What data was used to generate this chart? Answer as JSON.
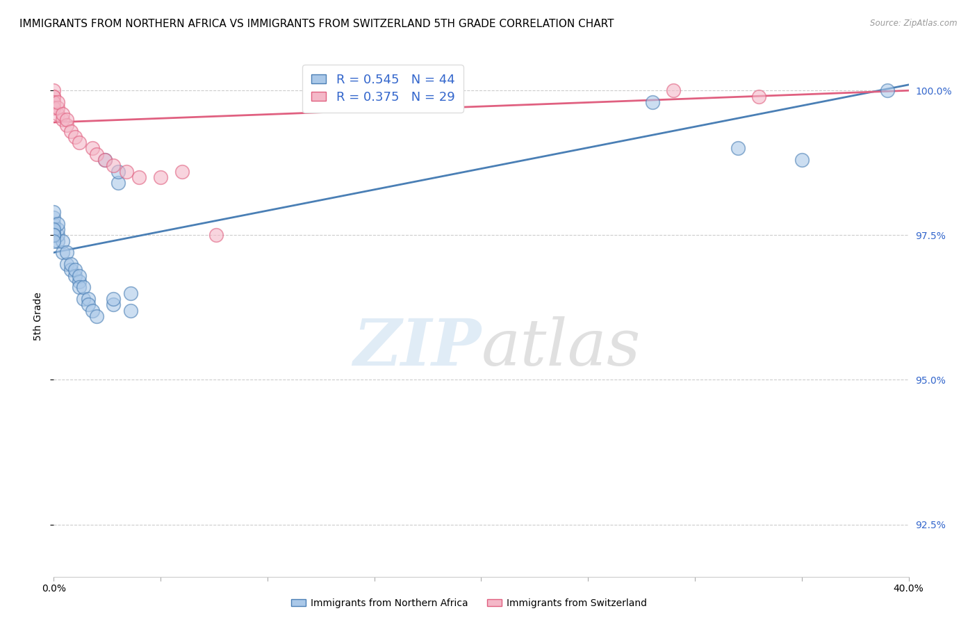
{
  "title": "IMMIGRANTS FROM NORTHERN AFRICA VS IMMIGRANTS FROM SWITZERLAND 5TH GRADE CORRELATION CHART",
  "source": "Source: ZipAtlas.com",
  "ylabel": "5th Grade",
  "ylabel_right_ticks": [
    "100.0%",
    "97.5%",
    "95.0%",
    "92.5%"
  ],
  "ytick_values": [
    1.0,
    0.975,
    0.95,
    0.925
  ],
  "legend_blue": "R = 0.545   N = 44",
  "legend_pink": "R = 0.375   N = 29",
  "watermark_zip": "ZIP",
  "watermark_atlas": "atlas",
  "blue_scatter_x": [
    0.0,
    0.0,
    0.0,
    0.0,
    0.0,
    0.0,
    0.0,
    0.002,
    0.002,
    0.002,
    0.002,
    0.004,
    0.004,
    0.006,
    0.006,
    0.008,
    0.008,
    0.01,
    0.01,
    0.012,
    0.012,
    0.012,
    0.014,
    0.014,
    0.016,
    0.016,
    0.018,
    0.02,
    0.024,
    0.028,
    0.028,
    0.03,
    0.03,
    0.036,
    0.036,
    0.28,
    0.32,
    0.35,
    0.39,
    0.0,
    0.0,
    0.0,
    0.0,
    0.0
  ],
  "blue_scatter_y": [
    0.975,
    0.975,
    0.976,
    0.977,
    0.978,
    0.979,
    0.975,
    0.974,
    0.975,
    0.976,
    0.977,
    0.972,
    0.974,
    0.97,
    0.972,
    0.969,
    0.97,
    0.968,
    0.969,
    0.967,
    0.968,
    0.966,
    0.964,
    0.966,
    0.964,
    0.963,
    0.962,
    0.961,
    0.988,
    0.963,
    0.964,
    0.984,
    0.986,
    0.965,
    0.962,
    0.998,
    0.99,
    0.988,
    1.0,
    0.975,
    0.975,
    0.976,
    0.975,
    0.974
  ],
  "pink_scatter_x": [
    0.0,
    0.0,
    0.0,
    0.0,
    0.0,
    0.0,
    0.0,
    0.0,
    0.002,
    0.002,
    0.002,
    0.004,
    0.004,
    0.006,
    0.006,
    0.008,
    0.01,
    0.012,
    0.018,
    0.02,
    0.024,
    0.028,
    0.034,
    0.04,
    0.05,
    0.06,
    0.076,
    0.29,
    0.33
  ],
  "pink_scatter_y": [
    0.997,
    0.997,
    0.998,
    0.999,
    1.0,
    0.999,
    0.998,
    0.997,
    0.996,
    0.997,
    0.998,
    0.995,
    0.996,
    0.994,
    0.995,
    0.993,
    0.992,
    0.991,
    0.99,
    0.989,
    0.988,
    0.987,
    0.986,
    0.985,
    0.985,
    0.986,
    0.975,
    1.0,
    0.999
  ],
  "blue_line_x": [
    0.0,
    0.4
  ],
  "blue_line_y": [
    0.972,
    1.001
  ],
  "pink_line_x": [
    0.0,
    0.4
  ],
  "pink_line_y": [
    0.9945,
    1.0
  ],
  "xlim": [
    0.0,
    0.4
  ],
  "ylim": [
    0.916,
    1.006
  ],
  "yticks": [
    1.0,
    0.975,
    0.95,
    0.925
  ],
  "xtick_vals": [
    0.0,
    0.05,
    0.1,
    0.15,
    0.2,
    0.25,
    0.3,
    0.35,
    0.4
  ],
  "xtick_labels": [
    "0.0%",
    "",
    "",
    "",
    "",
    "",
    "",
    "",
    "40.0%"
  ],
  "grid_color": "#cccccc",
  "blue_color": "#aac8e8",
  "pink_color": "#f4b8c8",
  "blue_line_color": "#4a7fb5",
  "pink_line_color": "#e06080",
  "bg_color": "#ffffff",
  "title_fontsize": 11,
  "axis_label_fontsize": 10,
  "tick_fontsize": 9,
  "legend_fontsize": 13
}
